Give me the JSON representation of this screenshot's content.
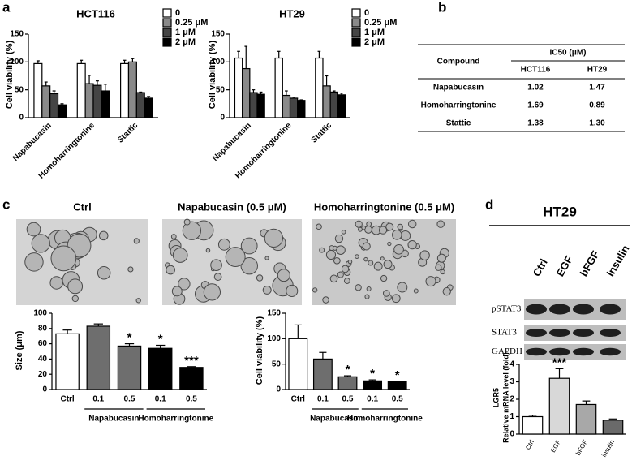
{
  "panel_labels": [
    "a",
    "b",
    "c",
    "d"
  ],
  "table": {
    "header": "Compound",
    "group_header": "IC50 (μM)",
    "columns": [
      "HCT116",
      "HT29"
    ],
    "rows": [
      [
        "Napabucasin",
        "1.02",
        "1.47"
      ],
      [
        "Homoharringtonine",
        "1.69",
        "0.89"
      ],
      [
        "Stattic",
        "1.38",
        "1.30"
      ]
    ]
  },
  "images": [
    "Ctrl",
    "Napabucasin (0.5 μM)",
    "Homoharringtonine (0.5 μM)"
  ],
  "blot": {
    "title": "HT29",
    "lanes": [
      "Ctrl",
      "EGF",
      "bFGF",
      "insulin"
    ],
    "rows": [
      "pSTAT3",
      "STAT3",
      "GAPDH"
    ]
  },
  "chart_data": [
    {
      "type": "bar",
      "title": "HCT116",
      "ylabel": [
        "Cell viability (%)"
      ],
      "categories": [
        "Napabucasin",
        "Homoharringtonine",
        "Stattic"
      ],
      "series": [
        {
          "name": "0",
          "color": "#ffffff",
          "values": [
            97,
            97,
            97
          ],
          "errors": [
            5,
            6,
            6
          ]
        },
        {
          "name": "0.25 μM",
          "color": "#8a8a8a",
          "values": [
            57,
            61,
            100
          ],
          "errors": [
            7,
            15,
            6
          ]
        },
        {
          "name": "1 μM",
          "color": "#454545",
          "values": [
            43,
            58,
            45
          ],
          "errors": [
            5,
            8,
            1
          ]
        },
        {
          "name": "2 μM",
          "color": "#000000",
          "values": [
            23,
            48,
            35
          ],
          "errors": [
            2,
            12,
            3
          ]
        }
      ],
      "ylim": [
        0,
        150
      ],
      "yticks": [
        0,
        50,
        100,
        150
      ]
    },
    {
      "type": "bar",
      "title": "HT29",
      "ylabel": [
        "Cell viability (%)"
      ],
      "categories": [
        "Napabucasin",
        "Homoharringtonine",
        "Stattic"
      ],
      "series": [
        {
          "name": "0",
          "color": "#ffffff",
          "values": [
            107,
            107,
            107
          ],
          "errors": [
            12,
            12,
            12
          ]
        },
        {
          "name": "0.25 μM",
          "color": "#8a8a8a",
          "values": [
            88,
            40,
            57
          ],
          "errors": [
            40,
            8,
            18
          ]
        },
        {
          "name": "1 μM",
          "color": "#454545",
          "values": [
            45,
            35,
            46
          ],
          "errors": [
            5,
            2,
            2
          ]
        },
        {
          "name": "2 μM",
          "color": "#000000",
          "values": [
            42,
            31,
            41
          ],
          "errors": [
            4,
            1,
            3
          ]
        }
      ],
      "ylim": [
        0,
        150
      ],
      "yticks": [
        0,
        50,
        100,
        150
      ]
    },
    {
      "type": "bar",
      "ylabel": [
        "Size (μm)"
      ],
      "categories": [
        "Ctrl",
        "0.1",
        "0.5",
        "0.1",
        "0.5"
      ],
      "groups": [
        "Napabucasin",
        "Homoharringtonine"
      ],
      "series": [
        {
          "colors": [
            "#ffffff",
            "#6e6e6e",
            "#6e6e6e",
            "#000000",
            "#000000"
          ],
          "values": [
            73,
            83,
            57,
            54,
            29
          ],
          "errors": [
            5,
            3,
            3,
            4,
            1
          ],
          "significance": [
            null,
            null,
            "*",
            "*",
            "***"
          ]
        }
      ],
      "ylim": [
        0,
        100
      ],
      "yticks": [
        0,
        20,
        40,
        60,
        80,
        100
      ]
    },
    {
      "type": "bar",
      "ylabel": [
        "Cell viability (%)"
      ],
      "categories": [
        "Ctrl",
        "0.1",
        "0.5",
        "0.1",
        "0.5"
      ],
      "groups": [
        "Napabucasin",
        "Homoharringtonine"
      ],
      "series": [
        {
          "colors": [
            "#ffffff",
            "#6e6e6e",
            "#6e6e6e",
            "#000000",
            "#000000"
          ],
          "values": [
            100,
            60,
            25,
            17,
            15
          ],
          "errors": [
            27,
            13,
            2,
            2,
            1
          ],
          "significance": [
            null,
            null,
            "*",
            "*",
            "*"
          ]
        }
      ],
      "ylim": [
        0,
        150
      ],
      "yticks": [
        0,
        50,
        100,
        150
      ]
    },
    {
      "type": "bar",
      "ylabel": [
        "LGR5",
        "Relative mRNA level (fold)"
      ],
      "categories": [
        "Ctrl",
        "EGF",
        "bFGF",
        "insulin"
      ],
      "series": [
        {
          "colors": [
            "#ffffff",
            "#d8d8d8",
            "#a8a8a8",
            "#6a6a6a"
          ],
          "values": [
            1.0,
            3.2,
            1.7,
            0.8
          ],
          "errors": [
            0.08,
            0.55,
            0.2,
            0.07
          ],
          "significance": [
            null,
            "***",
            null,
            null
          ]
        }
      ],
      "ylim": [
        0,
        4
      ],
      "yticks": [
        0,
        1,
        2,
        3,
        4
      ]
    }
  ]
}
